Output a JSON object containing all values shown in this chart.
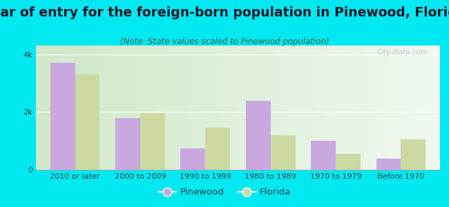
{
  "title": "Year of entry for the foreign-born population in Pinewood, Florida",
  "subtitle": "(Note: State values scaled to Pinewood population)",
  "categories": [
    "2010 or later",
    "2000 to 2009",
    "1990 to 1999",
    "1980 to 1989",
    "1970 to 1979",
    "Before 1970"
  ],
  "pinewood_values": [
    3700,
    1800,
    750,
    2400,
    1000,
    380
  ],
  "florida_values": [
    3300,
    1950,
    1450,
    1200,
    560,
    1050
  ],
  "pinewood_color": "#c9a8e0",
  "florida_color": "#ccd9a0",
  "background_outer": "#00e8f0",
  "background_inner_left": "#d0e8c8",
  "background_inner_right": "#f0f8f0",
  "ylim": [
    0,
    4300
  ],
  "yticks": [
    0,
    2000,
    4000
  ],
  "ytick_labels": [
    "0",
    "2k",
    "4k"
  ],
  "bar_width": 0.38,
  "figsize": [
    6.5,
    3.0
  ],
  "dpi": 100,
  "title_fontsize": 13.5,
  "subtitle_fontsize": 8.5,
  "tick_fontsize": 8,
  "legend_fontsize": 9.5,
  "watermark_text": "City-Data.com"
}
